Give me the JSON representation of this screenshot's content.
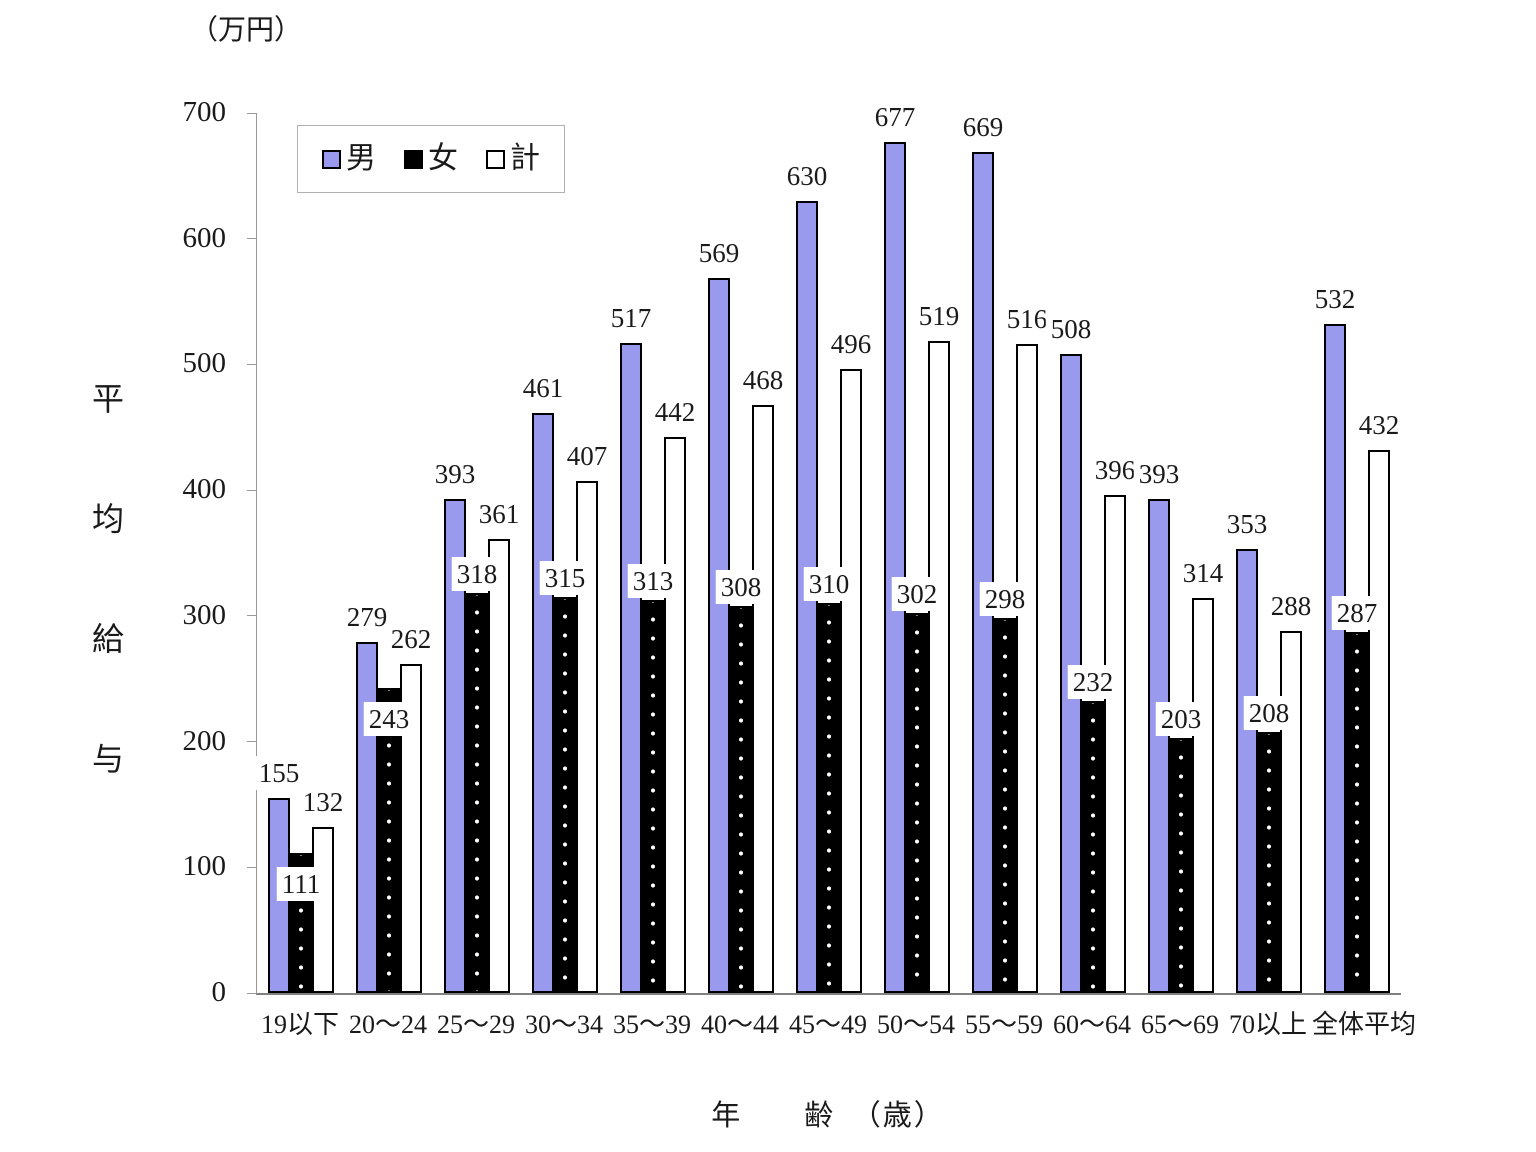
{
  "unit_label": "（万円）",
  "x_axis_title": "年　　齢　（歳）",
  "y_axis_title_chars": [
    "平",
    "均",
    "給",
    "与"
  ],
  "legend": {
    "items": [
      {
        "key": "male",
        "label": "男"
      },
      {
        "key": "female",
        "label": "女"
      },
      {
        "key": "total",
        "label": "計"
      }
    ]
  },
  "colors": {
    "male": "#9999ee",
    "female": "#000000",
    "total": "#ffffff",
    "bar_border": "#000000",
    "axis": "#999999",
    "text": "#1a1a1a"
  },
  "chart_data": {
    "type": "bar",
    "title": "",
    "xlabel": "年齢（歳）",
    "ylabel": "平均給与",
    "unit": "万円",
    "ylim": [
      0,
      700
    ],
    "yticks": [
      0,
      100,
      200,
      300,
      400,
      500,
      600,
      700
    ],
    "grid": false,
    "legend_position": "top-left-inside",
    "categories": [
      "19以下",
      "20〜24",
      "25〜29",
      "30〜34",
      "35〜39",
      "40〜44",
      "45〜49",
      "50〜54",
      "55〜59",
      "60〜64",
      "65〜69",
      "70以上",
      "全体平均"
    ],
    "series": [
      {
        "name": "男",
        "key": "male",
        "values": [
          155,
          279,
          393,
          461,
          517,
          569,
          630,
          677,
          669,
          508,
          393,
          353,
          532
        ]
      },
      {
        "name": "女",
        "key": "female",
        "values": [
          111,
          243,
          318,
          315,
          313,
          308,
          310,
          302,
          298,
          232,
          203,
          208,
          287
        ]
      },
      {
        "name": "計",
        "key": "total",
        "values": [
          132,
          262,
          361,
          407,
          442,
          468,
          496,
          519,
          516,
          396,
          314,
          288,
          432
        ]
      }
    ],
    "female_label_inside_indices": [
      0,
      1
    ]
  }
}
